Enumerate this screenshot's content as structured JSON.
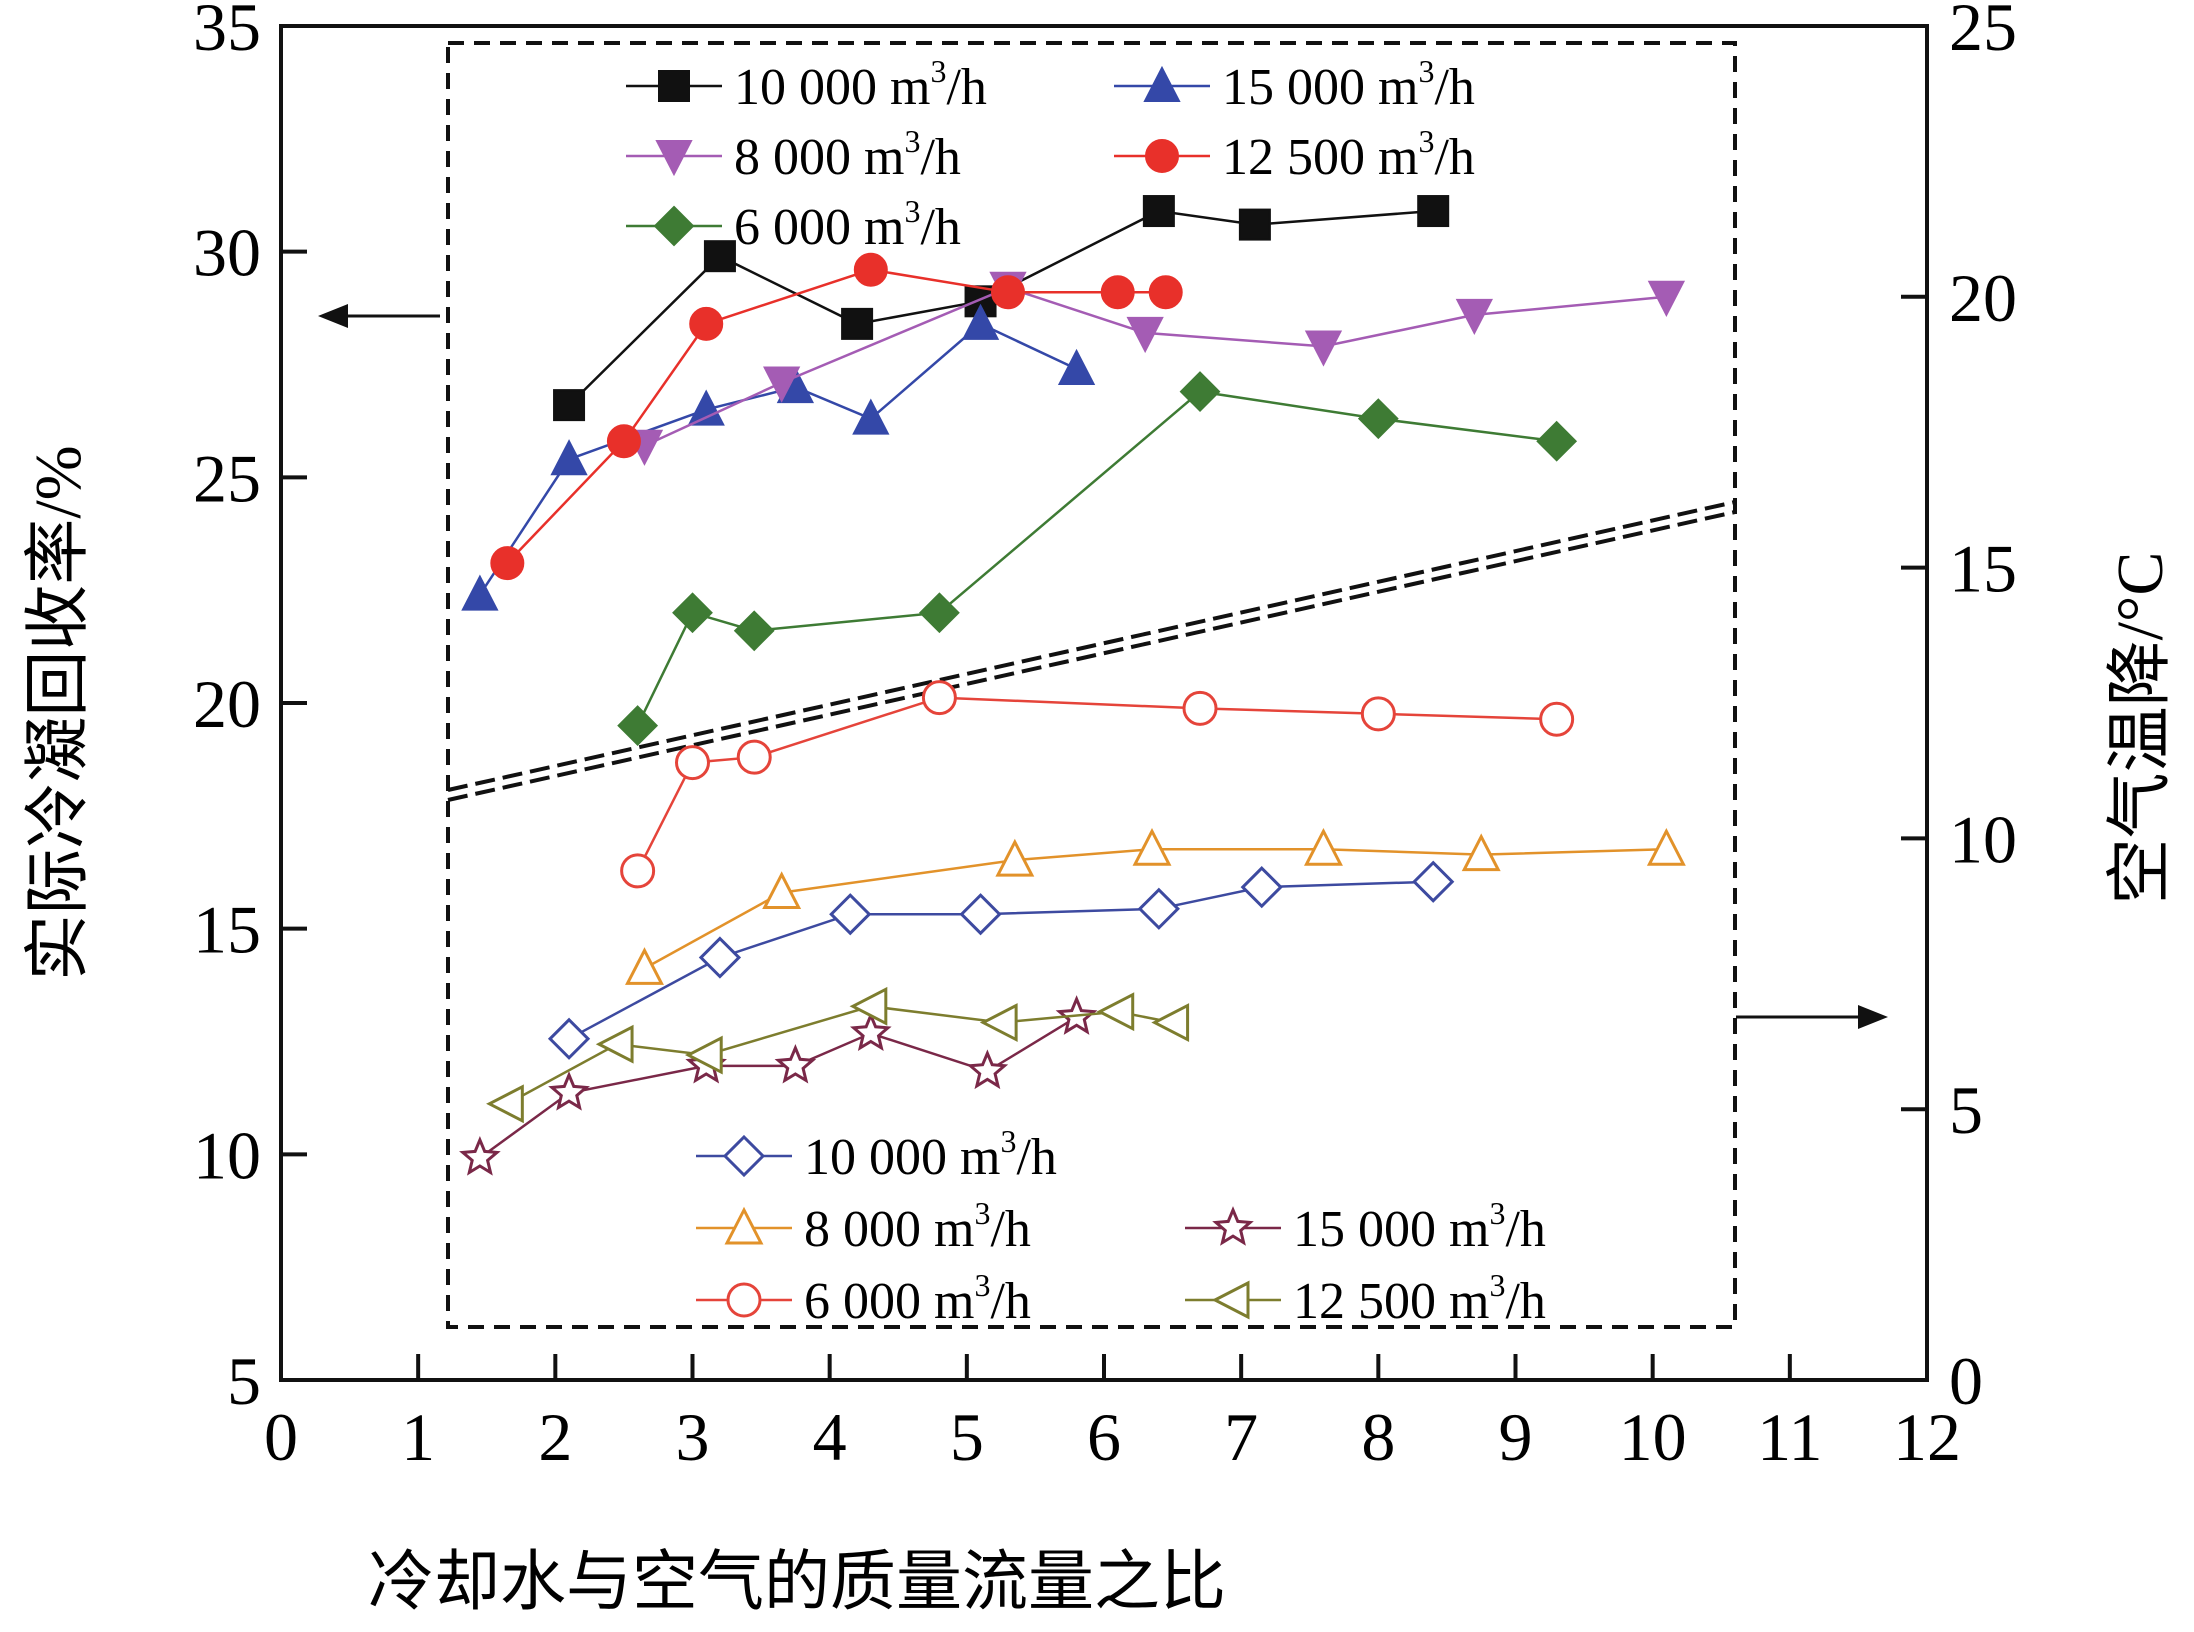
{
  "chart_data": {
    "type": "line",
    "x_axis": {
      "label": "冷却水与空气的质量流量之比",
      "range": [
        0,
        12
      ],
      "ticks": [
        0,
        1,
        2,
        3,
        4,
        5,
        6,
        7,
        8,
        9,
        10,
        11,
        12
      ]
    },
    "y_left": {
      "label": "实际冷凝回收率/%",
      "range": [
        5,
        35
      ],
      "ticks": [
        5,
        10,
        15,
        20,
        25,
        30,
        35
      ]
    },
    "y_right": {
      "label": "空气温降/°C",
      "range": [
        0,
        25
      ],
      "ticks": [
        0,
        5,
        10,
        15,
        20,
        25
      ]
    },
    "series": [
      {
        "name": "10 000 m3/h",
        "label": "10 000 m",
        "sup": "3",
        "unit": "/h",
        "axis": "left",
        "marker": "square",
        "filled": true,
        "color": "#111111",
        "points": [
          [
            2.1,
            26.6
          ],
          [
            3.2,
            29.9
          ],
          [
            4.2,
            28.4
          ],
          [
            5.1,
            28.9
          ],
          [
            6.4,
            30.9
          ],
          [
            7.1,
            30.6
          ],
          [
            8.4,
            30.9
          ]
        ]
      },
      {
        "name": "15 000 m3/h",
        "label": "15 000 m",
        "sup": "3",
        "unit": "/h",
        "axis": "left",
        "marker": "triangle-up",
        "filled": true,
        "color": "#3448a8",
        "points": [
          [
            1.45,
            22.4
          ],
          [
            2.1,
            25.4
          ],
          [
            3.1,
            26.5
          ],
          [
            3.75,
            27.0
          ],
          [
            4.3,
            26.3
          ],
          [
            5.1,
            28.4
          ],
          [
            5.8,
            27.4
          ]
        ]
      },
      {
        "name": "8 000 m3/h",
        "label": "8 000 m",
        "sup": "3",
        "unit": "/h",
        "axis": "left",
        "marker": "triangle-down",
        "filled": true,
        "color": "#a45cb4",
        "points": [
          [
            2.65,
            25.7
          ],
          [
            3.65,
            27.1
          ],
          [
            5.3,
            29.2
          ],
          [
            6.3,
            28.2
          ],
          [
            7.6,
            27.9
          ],
          [
            8.7,
            28.6
          ],
          [
            10.1,
            29.0
          ]
        ]
      },
      {
        "name": "12 500 m3/h",
        "label": "12 500 m",
        "sup": "3",
        "unit": "/h",
        "axis": "left",
        "marker": "circle",
        "filled": true,
        "color": "#e8302a",
        "points": [
          [
            1.65,
            23.1
          ],
          [
            2.5,
            25.8
          ],
          [
            3.1,
            28.4
          ],
          [
            4.3,
            29.6
          ],
          [
            5.3,
            29.1
          ],
          [
            6.1,
            29.1
          ],
          [
            6.45,
            29.1
          ]
        ]
      },
      {
        "name": "6 000 m3/h",
        "label": "6 000 m",
        "sup": "3",
        "unit": "/h",
        "axis": "left",
        "marker": "diamond",
        "filled": true,
        "color": "#3e7b34",
        "points": [
          [
            2.6,
            19.5
          ],
          [
            3.0,
            22.0
          ],
          [
            3.45,
            21.6
          ],
          [
            4.8,
            22.0
          ],
          [
            6.7,
            26.9
          ],
          [
            8.0,
            26.3
          ],
          [
            9.3,
            25.8
          ]
        ]
      },
      {
        "name": "10 000 m3/h (temp drop)",
        "label": "10 000 m",
        "sup": "3",
        "unit": "/h",
        "axis": "right",
        "marker": "diamond",
        "filled": false,
        "color": "#3d4aa0",
        "points": [
          [
            2.1,
            6.3
          ],
          [
            3.2,
            7.8
          ],
          [
            4.15,
            8.6
          ],
          [
            5.1,
            8.6
          ],
          [
            6.4,
            8.7
          ],
          [
            7.15,
            9.1
          ],
          [
            8.4,
            9.2
          ]
        ]
      },
      {
        "name": "8 000 m3/h (temp drop)",
        "label": "8 000 m",
        "sup": "3",
        "unit": "/h",
        "axis": "right",
        "marker": "triangle-up",
        "filled": false,
        "color": "#e2922a",
        "points": [
          [
            2.65,
            7.6
          ],
          [
            3.65,
            9.0
          ],
          [
            5.35,
            9.6
          ],
          [
            6.35,
            9.8
          ],
          [
            7.6,
            9.8
          ],
          [
            8.75,
            9.7
          ],
          [
            10.1,
            9.8
          ]
        ]
      },
      {
        "name": "15 000 m3/h (temp drop)",
        "label": "15 000 m",
        "sup": "3",
        "unit": "/h",
        "axis": "right",
        "marker": "star",
        "filled": false,
        "color": "#7a2848",
        "points": [
          [
            1.45,
            4.1
          ],
          [
            2.1,
            5.3
          ],
          [
            3.1,
            5.8
          ],
          [
            3.75,
            5.8
          ],
          [
            4.3,
            6.4
          ],
          [
            5.15,
            5.7
          ],
          [
            5.8,
            6.7
          ]
        ]
      },
      {
        "name": "6 000 m3/h (temp drop)",
        "label": "6 000 m",
        "sup": "3",
        "unit": "/h",
        "axis": "right",
        "marker": "circle",
        "filled": false,
        "color": "#e5443a",
        "points": [
          [
            2.6,
            9.4
          ],
          [
            3.0,
            11.4
          ],
          [
            3.45,
            11.5
          ],
          [
            4.8,
            12.6
          ],
          [
            6.7,
            12.4
          ],
          [
            8.0,
            12.3
          ],
          [
            9.3,
            12.2
          ]
        ]
      },
      {
        "name": "12 500 m3/h (temp drop)",
        "label": "12 500 m",
        "sup": "3",
        "unit": "/h",
        "axis": "right",
        "marker": "triangle-left",
        "filled": false,
        "color": "#7d7d2e",
        "points": [
          [
            1.65,
            5.1
          ],
          [
            2.45,
            6.2
          ],
          [
            3.1,
            6.0
          ],
          [
            4.3,
            6.9
          ],
          [
            5.25,
            6.6
          ],
          [
            6.1,
            6.8
          ],
          [
            6.5,
            6.6
          ]
        ]
      }
    ],
    "legend_top": {
      "position": "top-left inside dashed box",
      "rows": [
        [
          0,
          1
        ],
        [
          2,
          3
        ],
        [
          4
        ]
      ]
    },
    "legend_bottom": {
      "position": "bottom-left inside dashed box",
      "rows": [
        [
          5
        ],
        [
          6,
          7
        ],
        [
          8,
          9
        ]
      ]
    },
    "annotations": [
      {
        "type": "arrow",
        "direction": "left",
        "meaning": "left box series use left axis"
      },
      {
        "type": "arrow",
        "direction": "right",
        "meaning": "bottom series use right axis"
      },
      {
        "type": "dashed-box",
        "meaning": "grouping of data series"
      },
      {
        "type": "double-dashed-divider",
        "meaning": "separates recovery-rate and temperature-drop groups"
      }
    ]
  }
}
